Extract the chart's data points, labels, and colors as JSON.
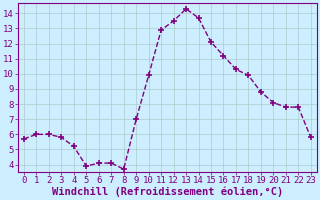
{
  "x": [
    0,
    1,
    2,
    3,
    4,
    5,
    6,
    7,
    8,
    9,
    10,
    11,
    12,
    13,
    14,
    15,
    16,
    17,
    18,
    19,
    20,
    21,
    22,
    23
  ],
  "y": [
    5.7,
    6.0,
    6.0,
    5.8,
    5.2,
    3.9,
    4.1,
    4.1,
    3.7,
    7.0,
    9.9,
    12.9,
    13.5,
    14.3,
    13.7,
    12.1,
    11.2,
    10.3,
    9.9,
    8.8,
    8.1,
    7.8,
    7.8,
    5.8
  ],
  "line_color": "#800080",
  "marker": "+",
  "marker_size": 4,
  "marker_lw": 1.2,
  "line_width": 1.0,
  "bg_color": "#cceeff",
  "grid_color": "#aacccc",
  "xlabel": "Windchill (Refroidissement éolien,°C)",
  "xlabel_color": "#800080",
  "xlabel_fontsize": 7.5,
  "tick_color": "#800080",
  "tick_fontsize": 6.5,
  "ylim": [
    3.5,
    14.7
  ],
  "xlim": [
    -0.5,
    23.5
  ],
  "yticks": [
    4,
    5,
    6,
    7,
    8,
    9,
    10,
    11,
    12,
    13,
    14
  ],
  "xticks": [
    0,
    1,
    2,
    3,
    4,
    5,
    6,
    7,
    8,
    9,
    10,
    11,
    12,
    13,
    14,
    15,
    16,
    17,
    18,
    19,
    20,
    21,
    22,
    23
  ]
}
